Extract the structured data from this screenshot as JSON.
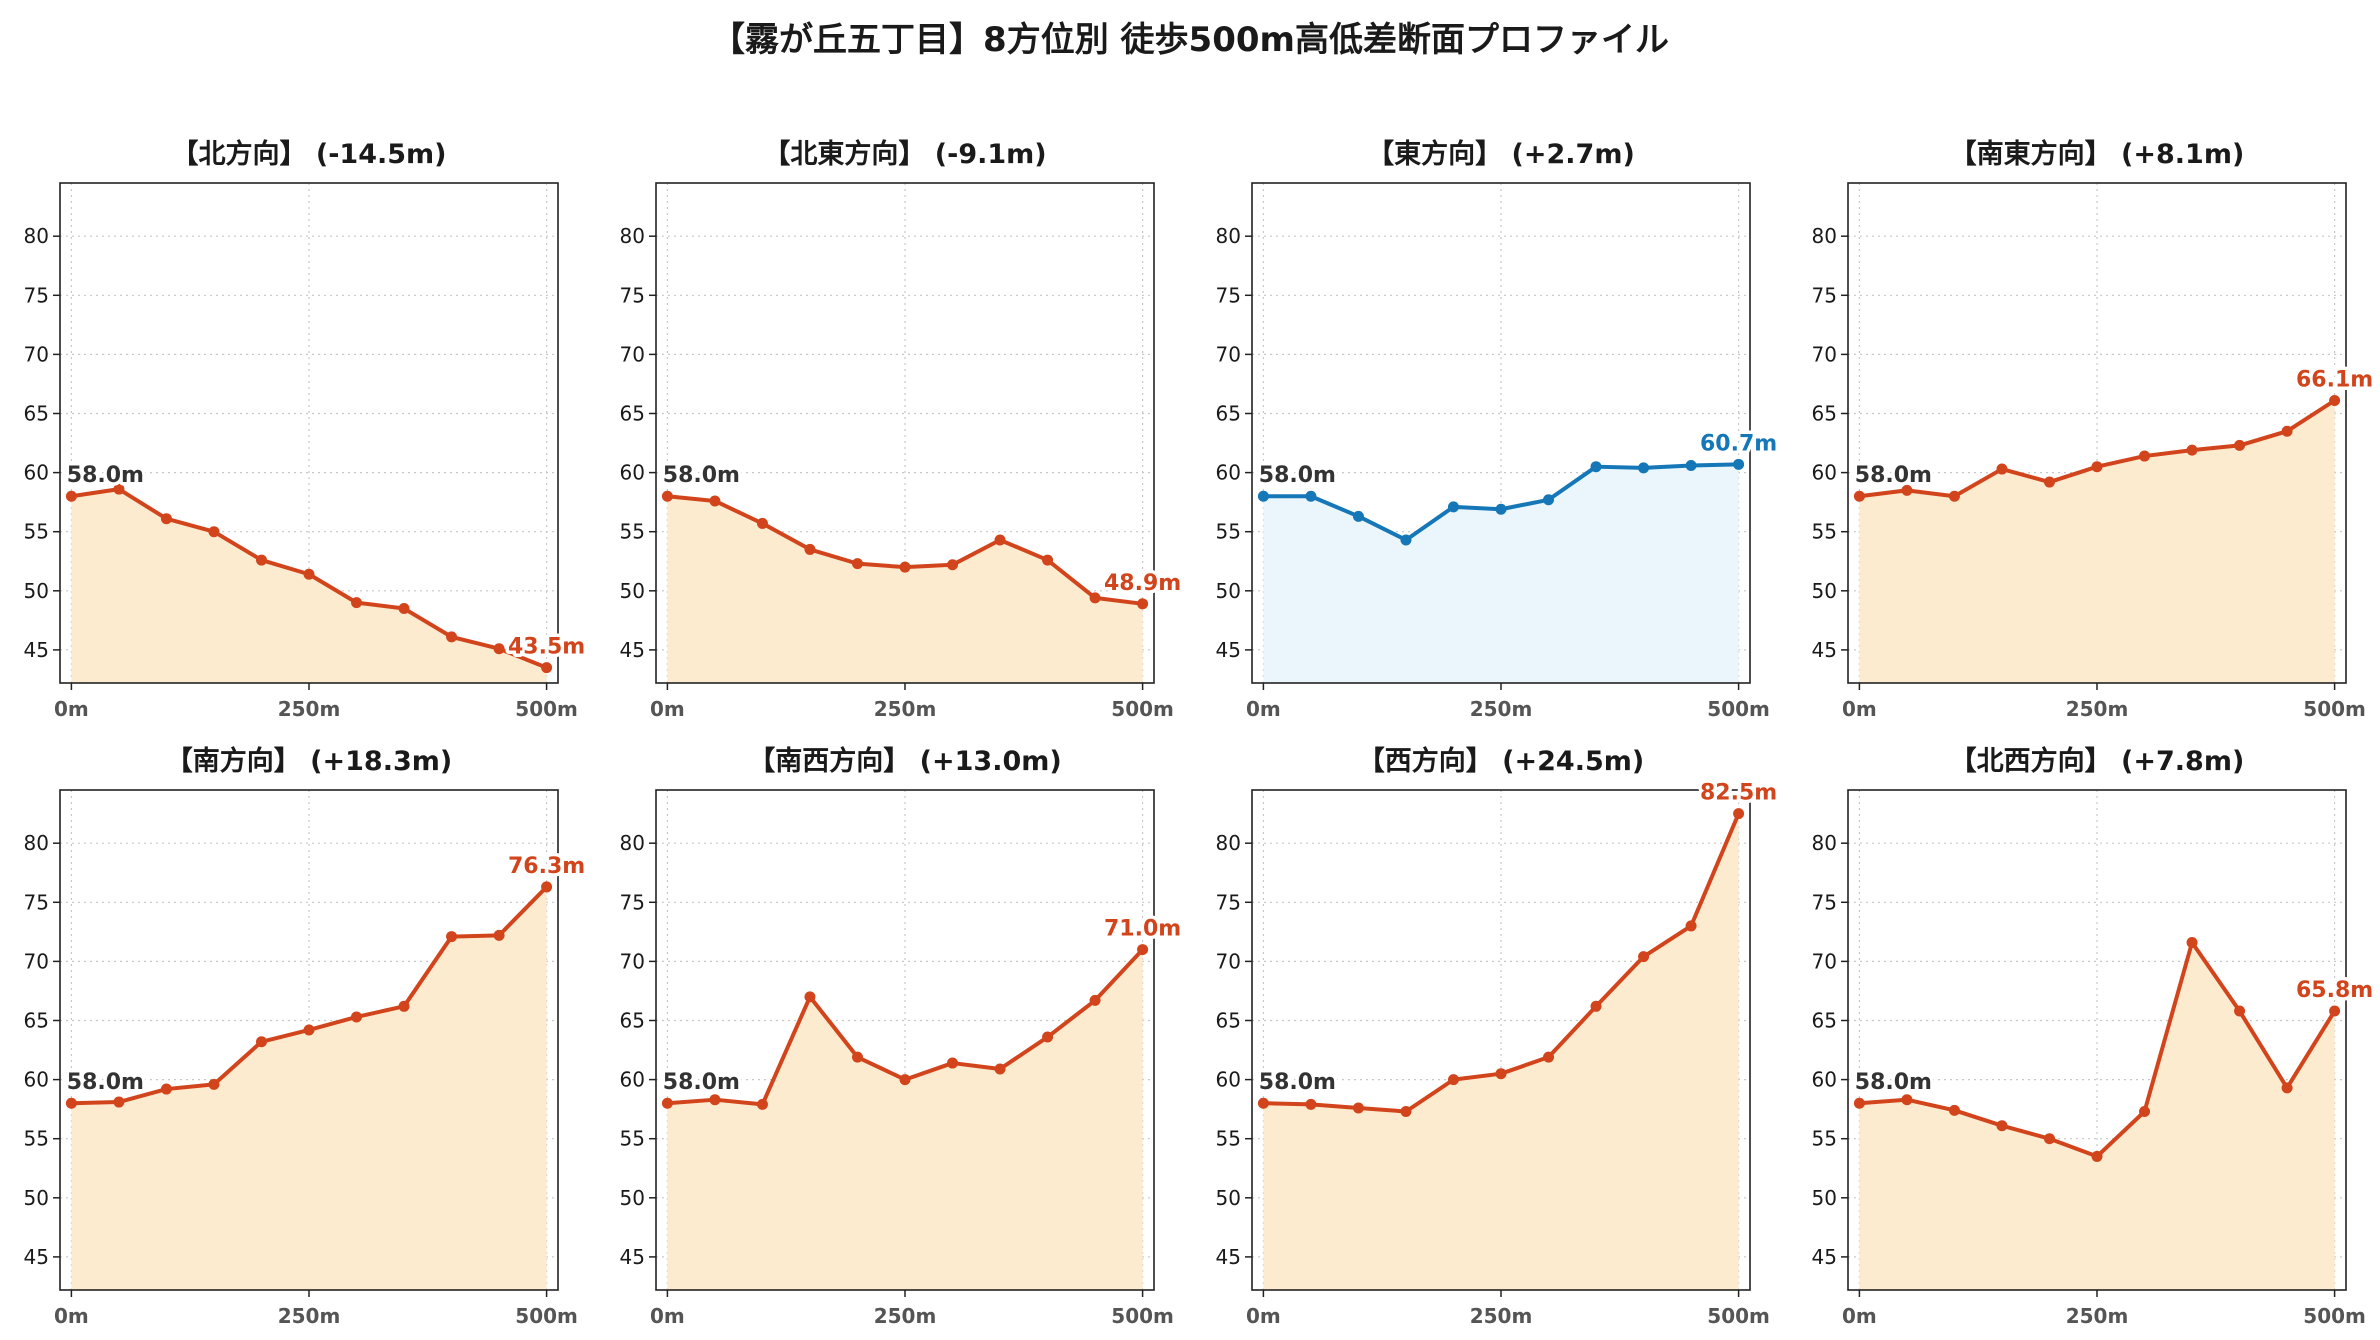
{
  "title": "【霧が丘五丁目】8方位別 徒歩500m高低差断面プロファイル",
  "colors": {
    "down_line": "#d2451c",
    "down_fill": "#fdebd0",
    "up_line": "#1577b8",
    "up_fill": "#eaf6fb",
    "grid": "#c8c8c8",
    "axis": "#222222"
  },
  "chart_data": [
    {
      "type": "area",
      "title": "【北方向】 (-14.5m)",
      "style": "orange",
      "x": [
        0,
        50,
        100,
        150,
        200,
        250,
        300,
        350,
        400,
        450,
        500
      ],
      "y": [
        58.0,
        58.6,
        56.1,
        55.0,
        52.6,
        51.4,
        49.0,
        48.5,
        46.1,
        45.1,
        43.5
      ],
      "start_label": "58.0m",
      "end_label": "43.5m",
      "xticks": [
        "0m",
        "250m",
        "500m"
      ],
      "yticks": [
        "45",
        "50",
        "55",
        "60",
        "65",
        "70",
        "75",
        "80"
      ],
      "ylim": [
        42.2,
        84.5
      ],
      "xlim": [
        -12,
        512
      ],
      "grid": true
    },
    {
      "type": "area",
      "title": "【北東方向】 (-9.1m)",
      "style": "orange",
      "x": [
        0,
        50,
        100,
        150,
        200,
        250,
        300,
        350,
        400,
        450,
        500
      ],
      "y": [
        58.0,
        57.6,
        55.7,
        53.5,
        52.3,
        52.0,
        52.2,
        54.3,
        52.6,
        49.4,
        48.9
      ],
      "start_label": "58.0m",
      "end_label": "48.9m",
      "xticks": [
        "0m",
        "250m",
        "500m"
      ],
      "yticks": [
        "45",
        "50",
        "55",
        "60",
        "65",
        "70",
        "75",
        "80"
      ],
      "ylim": [
        42.2,
        84.5
      ],
      "xlim": [
        -12,
        512
      ],
      "grid": true
    },
    {
      "type": "area",
      "title": "【東方向】 (+2.7m)",
      "style": "blue",
      "x": [
        0,
        50,
        100,
        150,
        200,
        250,
        300,
        350,
        400,
        450,
        500
      ],
      "y": [
        58.0,
        58.0,
        56.3,
        54.3,
        57.1,
        56.9,
        57.7,
        60.5,
        60.4,
        60.6,
        60.7
      ],
      "start_label": "58.0m",
      "end_label": "60.7m",
      "xticks": [
        "0m",
        "250m",
        "500m"
      ],
      "yticks": [
        "45",
        "50",
        "55",
        "60",
        "65",
        "70",
        "75",
        "80"
      ],
      "ylim": [
        42.2,
        84.5
      ],
      "xlim": [
        -12,
        512
      ],
      "grid": true
    },
    {
      "type": "area",
      "title": "【南東方向】 (+8.1m)",
      "style": "orange",
      "x": [
        0,
        50,
        100,
        150,
        200,
        250,
        300,
        350,
        400,
        450,
        500
      ],
      "y": [
        58.0,
        58.5,
        58.0,
        60.3,
        59.2,
        60.5,
        61.4,
        61.9,
        62.3,
        63.5,
        66.1
      ],
      "start_label": "58.0m",
      "end_label": "66.1m",
      "xticks": [
        "0m",
        "250m",
        "500m"
      ],
      "yticks": [
        "45",
        "50",
        "55",
        "60",
        "65",
        "70",
        "75",
        "80"
      ],
      "ylim": [
        42.2,
        84.5
      ],
      "xlim": [
        -12,
        512
      ],
      "grid": true
    },
    {
      "type": "area",
      "title": "【南方向】 (+18.3m)",
      "style": "orange",
      "x": [
        0,
        50,
        100,
        150,
        200,
        250,
        300,
        350,
        400,
        450,
        500
      ],
      "y": [
        58.0,
        58.1,
        59.2,
        59.6,
        63.2,
        64.2,
        65.3,
        66.2,
        72.1,
        72.2,
        76.3
      ],
      "start_label": "58.0m",
      "end_label": "76.3m",
      "xticks": [
        "0m",
        "250m",
        "500m"
      ],
      "yticks": [
        "45",
        "50",
        "55",
        "60",
        "65",
        "70",
        "75",
        "80"
      ],
      "ylim": [
        42.2,
        84.5
      ],
      "xlim": [
        -12,
        512
      ],
      "grid": true
    },
    {
      "type": "area",
      "title": "【南西方向】 (+13.0m)",
      "style": "orange",
      "x": [
        0,
        50,
        100,
        150,
        200,
        250,
        300,
        350,
        400,
        450,
        500
      ],
      "y": [
        58.0,
        58.3,
        57.9,
        67.0,
        61.9,
        60.0,
        61.4,
        60.9,
        63.6,
        66.7,
        71.0
      ],
      "start_label": "58.0m",
      "end_label": "71.0m",
      "xticks": [
        "0m",
        "250m",
        "500m"
      ],
      "yticks": [
        "45",
        "50",
        "55",
        "60",
        "65",
        "70",
        "75",
        "80"
      ],
      "ylim": [
        42.2,
        84.5
      ],
      "xlim": [
        -12,
        512
      ],
      "grid": true
    },
    {
      "type": "area",
      "title": "【西方向】 (+24.5m)",
      "style": "orange",
      "x": [
        0,
        50,
        100,
        150,
        200,
        250,
        300,
        350,
        400,
        450,
        500
      ],
      "y": [
        58.0,
        57.9,
        57.6,
        57.3,
        60.0,
        60.5,
        61.9,
        66.2,
        70.4,
        73.0,
        82.5
      ],
      "start_label": "58.0m",
      "end_label": "82.5m",
      "xticks": [
        "0m",
        "250m",
        "500m"
      ],
      "yticks": [
        "45",
        "50",
        "55",
        "60",
        "65",
        "70",
        "75",
        "80"
      ],
      "ylim": [
        42.2,
        84.5
      ],
      "xlim": [
        -12,
        512
      ],
      "grid": true
    },
    {
      "type": "area",
      "title": "【北西方向】 (+7.8m)",
      "style": "orange",
      "x": [
        0,
        50,
        100,
        150,
        200,
        250,
        300,
        350,
        400,
        450,
        500
      ],
      "y": [
        58.0,
        58.3,
        57.4,
        56.1,
        55.0,
        53.5,
        57.3,
        71.6,
        65.8,
        59.3,
        65.8
      ],
      "start_label": "58.0m",
      "end_label": "65.8m",
      "xticks": [
        "0m",
        "250m",
        "500m"
      ],
      "yticks": [
        "45",
        "50",
        "55",
        "60",
        "65",
        "70",
        "75",
        "80"
      ],
      "ylim": [
        42.2,
        84.5
      ],
      "xlim": [
        -12,
        512
      ],
      "grid": true
    }
  ]
}
